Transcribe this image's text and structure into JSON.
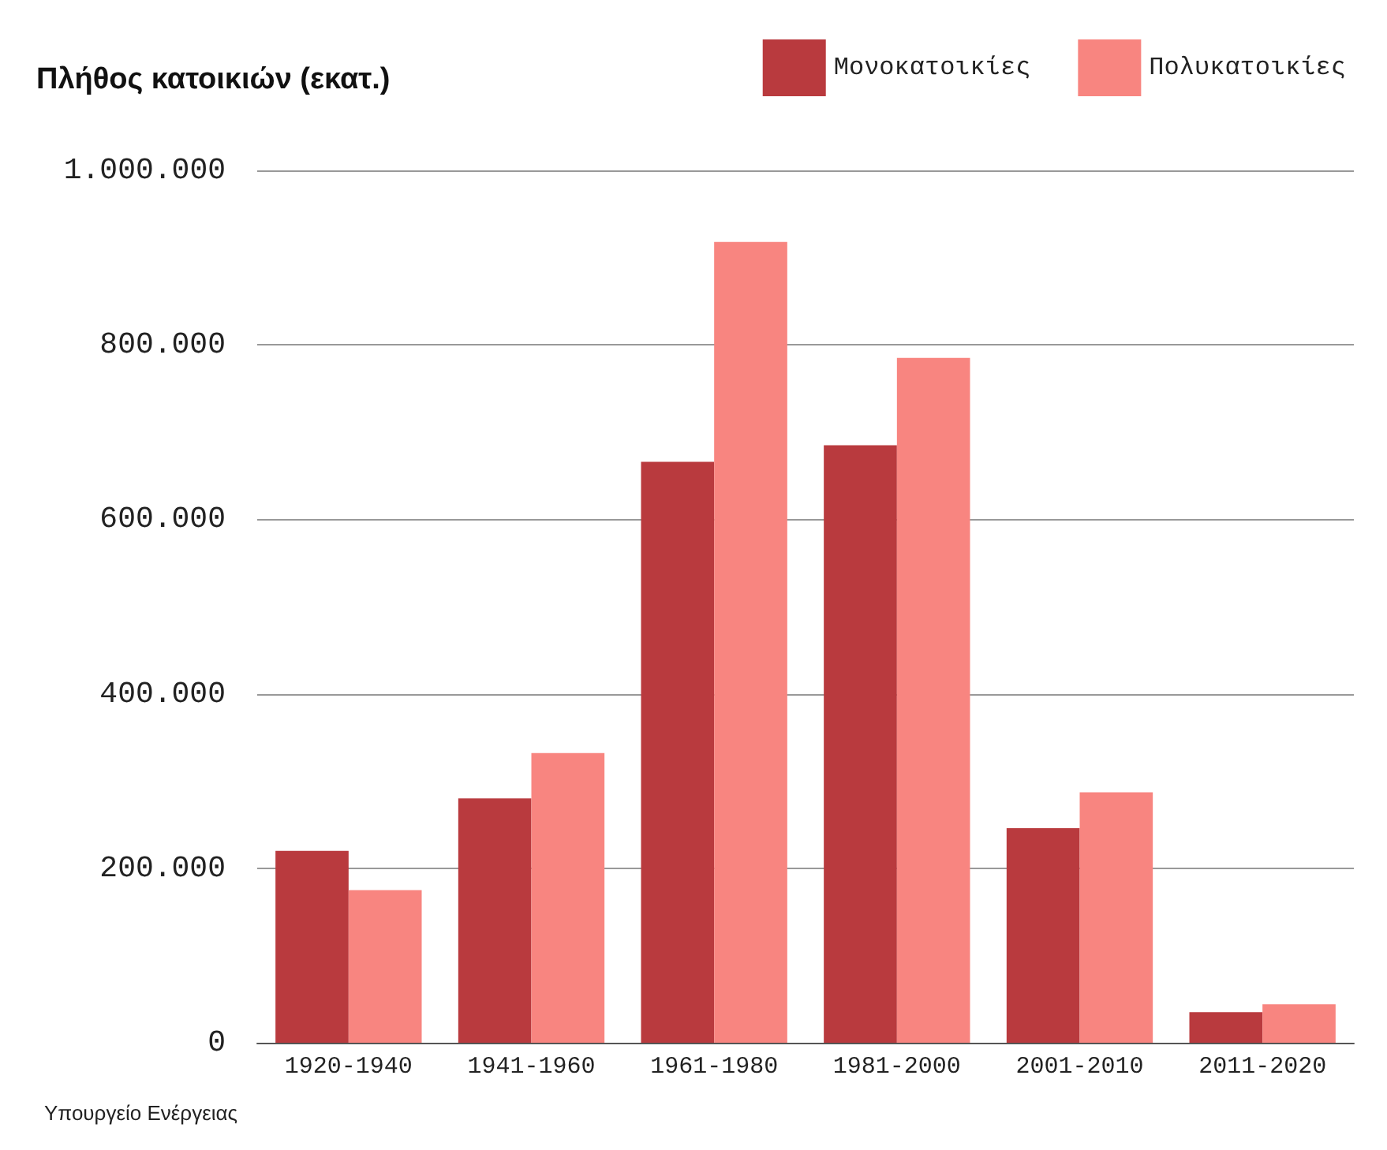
{
  "chart_data": {
    "type": "bar",
    "title": "Πλήθος κατοικιών (εκατ.)",
    "categories": [
      "1920-1940",
      "1941-1960",
      "1961-1980",
      "1981-2000",
      "2001-2010",
      "2011-2020"
    ],
    "series": [
      {
        "name": "Μονοκατοικίες",
        "color": "#b93a3e",
        "values": [
          220000,
          280000,
          666000,
          685000,
          246000,
          35000
        ]
      },
      {
        "name": "Πολυκατοικίες",
        "color": "#f88580",
        "values": [
          175000,
          332000,
          918000,
          785000,
          287000,
          44000
        ]
      }
    ],
    "ylim": [
      0,
      1000000
    ],
    "yticks": [
      0,
      {
        "value": 200000,
        "label": "200.000"
      },
      {
        "value": 400000,
        "label": "400.000"
      },
      {
        "value": 600000,
        "label": "600.000"
      },
      {
        "value": 800000,
        "label": "800.000"
      },
      {
        "value": 1000000,
        "label": "1.000.000"
      }
    ],
    "grid": "y",
    "legend": "top right",
    "annotations": [
      "Υπουργείο Ενέργειας"
    ]
  }
}
